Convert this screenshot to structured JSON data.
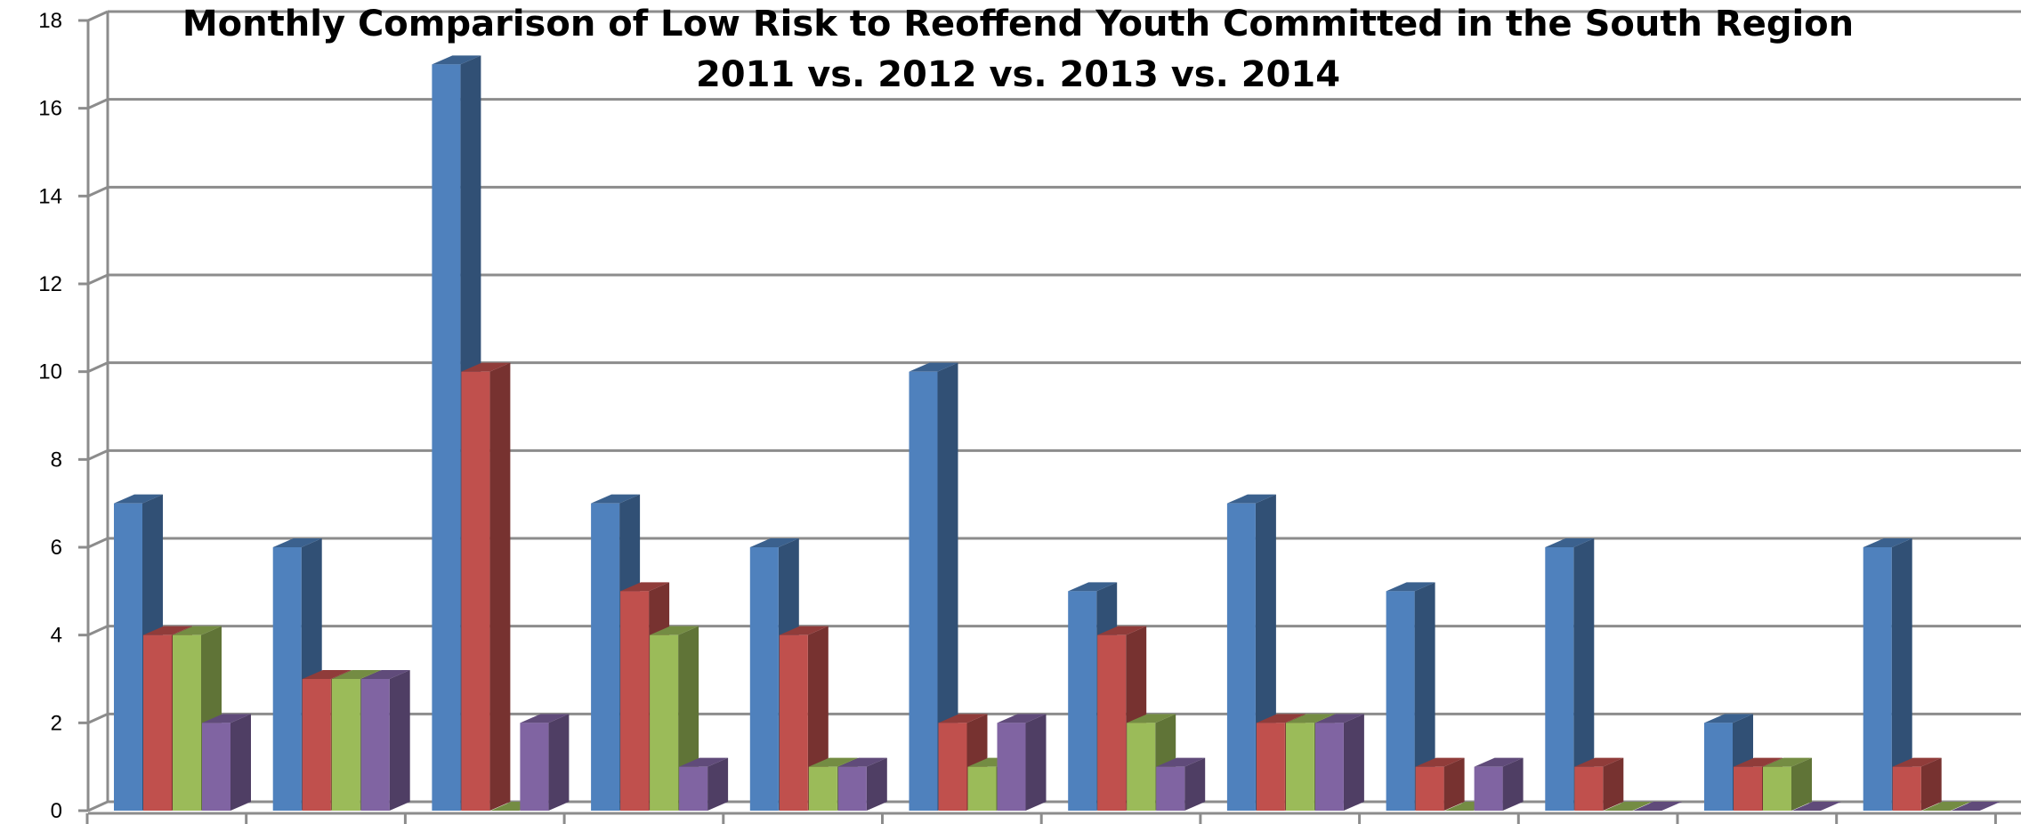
{
  "chart_data": {
    "type": "bar",
    "title": "Monthly Comparison of Low Risk to Reoffend Youth Committed in the South Region",
    "subtitle": "2011 vs. 2012 vs. 2013 vs. 2014",
    "xlabel": "",
    "ylabel": "",
    "ylim": [
      0,
      18
    ],
    "yticks": [
      0,
      2,
      4,
      6,
      8,
      10,
      12,
      14,
      16,
      18
    ],
    "grid": true,
    "legend": "none",
    "categories": [
      "",
      "",
      "",
      "",
      "",
      "",
      "",
      "",
      "",
      "",
      "",
      ""
    ],
    "series": [
      {
        "color": "#4F81BD",
        "values": [
          7,
          6,
          17,
          7,
          6,
          10,
          5,
          7,
          5,
          6,
          2,
          6
        ]
      },
      {
        "color": "#C0504D",
        "values": [
          4,
          3,
          10,
          5,
          4,
          2,
          4,
          2,
          1,
          1,
          1,
          1
        ]
      },
      {
        "color": "#9BBB59",
        "values": [
          4,
          3,
          0,
          4,
          1,
          1,
          2,
          2,
          0,
          0,
          1,
          0
        ]
      },
      {
        "color": "#8064A2",
        "values": [
          2,
          3,
          2,
          1,
          1,
          2,
          1,
          2,
          1,
          0,
          0,
          0
        ]
      }
    ]
  }
}
